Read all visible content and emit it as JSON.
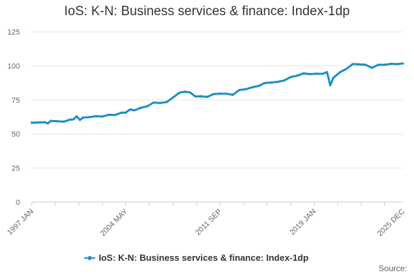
{
  "chart_data": {
    "type": "line",
    "title": "IoS: K-N: Business services & finance: Index-1dp",
    "xlabel": "",
    "ylabel": "",
    "ylim": [
      0,
      125
    ],
    "yticks": [
      0,
      25,
      50,
      75,
      100,
      125
    ],
    "x_range": [
      "1997 JAN",
      "2025 DEC"
    ],
    "x_tick_labels": [
      {
        "label": "1997 JAN",
        "month_index": 0
      },
      {
        "label": "2004 MAY",
        "month_index": 88
      },
      {
        "label": "2011 SEP",
        "month_index": 176
      },
      {
        "label": "2019 JAN",
        "month_index": 264
      },
      {
        "label": "2025 DEC",
        "month_index": 347
      }
    ],
    "grid": "horizontal",
    "legend_position": "bottom",
    "series": [
      {
        "name": "IoS: K-N: Business services & finance: Index-1dp",
        "color": "#1f8fc6",
        "points": [
          [
            "1997 JAN",
            58.5
          ],
          [
            "1997 JUL",
            58.2
          ],
          [
            "1998 JAN",
            58.9
          ],
          [
            "1998 APR",
            57.6
          ],
          [
            "1998 JUL",
            59.8
          ],
          [
            "1999 JAN",
            59.1
          ],
          [
            "1999 JUL",
            59.3
          ],
          [
            "2000 JAN",
            60.3
          ],
          [
            "2000 APR",
            61.0
          ],
          [
            "2000 JUL",
            62.7
          ],
          [
            "2000 OCT",
            60.6
          ],
          [
            "2001 JAN",
            61.8
          ],
          [
            "2001 JUL",
            62.6
          ],
          [
            "2002 JAN",
            62.8
          ],
          [
            "2002 JUL",
            63.0
          ],
          [
            "2003 JAN",
            63.8
          ],
          [
            "2003 JUL",
            64.2
          ],
          [
            "2004 JAN",
            65.4
          ],
          [
            "2004 MAY",
            66.0
          ],
          [
            "2004 SEP",
            67.8
          ],
          [
            "2005 JAN",
            67.6
          ],
          [
            "2005 JUL",
            69.0
          ],
          [
            "2006 JAN",
            70.6
          ],
          [
            "2006 JUL",
            72.8
          ],
          [
            "2007 JAN",
            73.0
          ],
          [
            "2007 JUL",
            73.2
          ],
          [
            "2008 JAN",
            77.0
          ],
          [
            "2008 JUL",
            80.0
          ],
          [
            "2008 DEC",
            81.3
          ],
          [
            "2009 MAY",
            80.2
          ],
          [
            "2009 OCT",
            77.8
          ],
          [
            "2010 MAR",
            77.4
          ],
          [
            "2010 SEP",
            77.5
          ],
          [
            "2011 MAR",
            79.0
          ],
          [
            "2011 SEP",
            79.8
          ],
          [
            "2012 MAR",
            79.3
          ],
          [
            "2012 SEP",
            79.0
          ],
          [
            "2013 MAR",
            82.0
          ],
          [
            "2013 SEP",
            83.1
          ],
          [
            "2014 MAR",
            84.0
          ],
          [
            "2014 SEP",
            85.5
          ],
          [
            "2015 MAR",
            87.2
          ],
          [
            "2015 SEP",
            88.0
          ],
          [
            "2016 MAR",
            88.0
          ],
          [
            "2016 SEP",
            89.5
          ],
          [
            "2017 MAR",
            91.5
          ],
          [
            "2017 SEP",
            93.0
          ],
          [
            "2018 MAR",
            94.2
          ],
          [
            "2018 SEP",
            94.2
          ],
          [
            "2019 MAR",
            94.0
          ],
          [
            "2019 SEP",
            94.4
          ],
          [
            "2020 JAN",
            95.2
          ],
          [
            "2020 APR",
            86.0
          ],
          [
            "2020 JUL",
            91.0
          ],
          [
            "2020 OCT",
            93.5
          ],
          [
            "2021 JAN",
            95.0
          ],
          [
            "2021 JUL",
            98.0
          ],
          [
            "2022 JAN",
            101.0
          ],
          [
            "2022 JUL",
            101.3
          ],
          [
            "2023 JAN",
            100.5
          ],
          [
            "2023 JUL",
            98.8
          ],
          [
            "2024 JAN",
            100.5
          ],
          [
            "2024 JUL",
            101.0
          ],
          [
            "2025 JAN",
            101.2
          ],
          [
            "2025 JUL",
            101.5
          ],
          [
            "2025 DEC",
            101.5
          ]
        ]
      }
    ]
  },
  "legend": {
    "label": "IoS: K-N: Business services & finance: Index-1dp"
  },
  "footer": {
    "source_label": "Source:"
  }
}
